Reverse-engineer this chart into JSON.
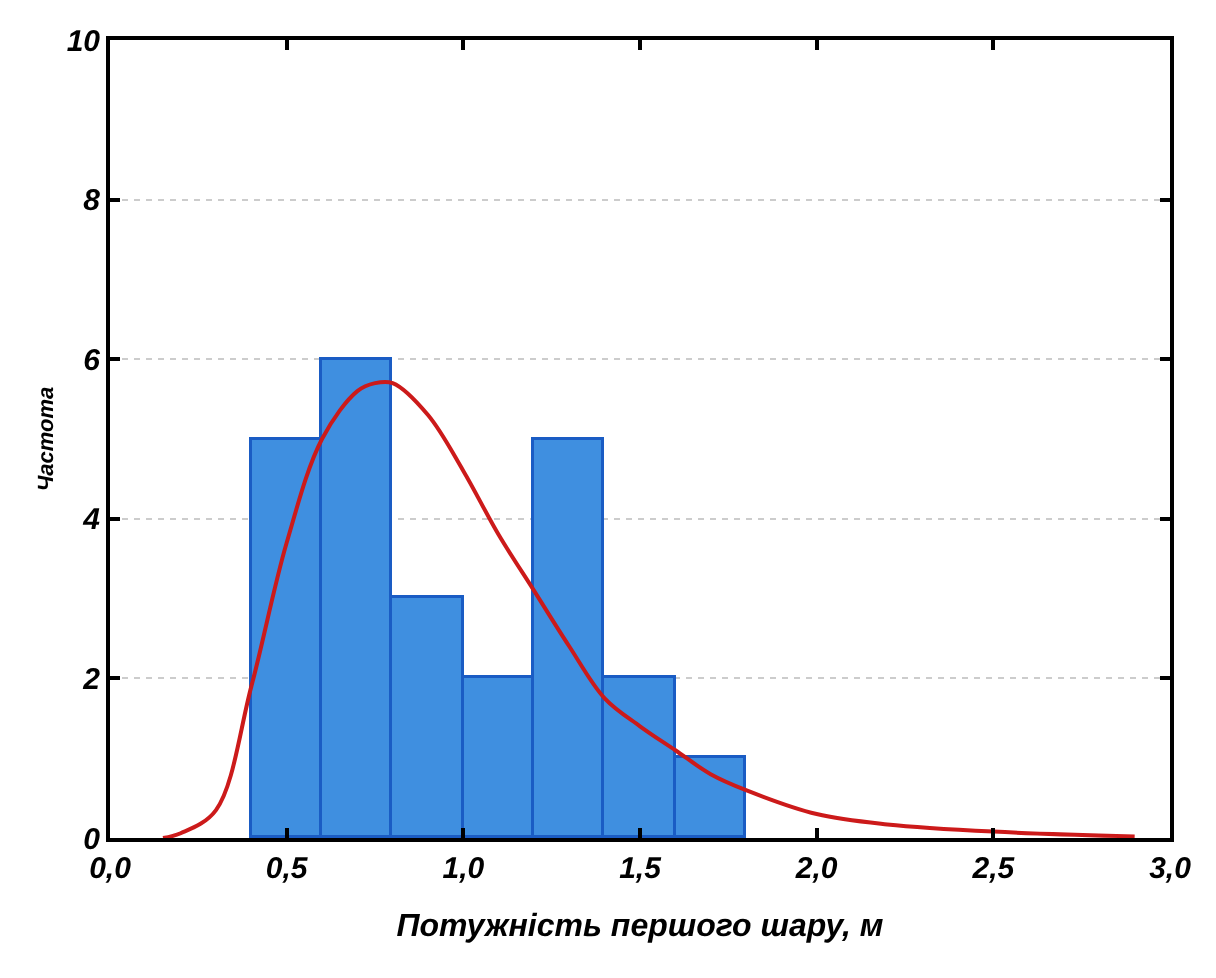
{
  "chart_data": {
    "type": "histogram",
    "xlabel": "Потужність першого шару, м",
    "ylabel": "Частота",
    "bins": [
      0.4,
      0.6,
      0.8,
      1.0,
      1.2,
      1.4,
      1.6,
      1.8
    ],
    "values": [
      5,
      6,
      3,
      2,
      5,
      2,
      1
    ],
    "color": "#3f8fe0",
    "series": [
      {
        "type": "line",
        "color": "#cc1a1a",
        "x": [
          0.15,
          0.2,
          0.3,
          0.4,
          0.5,
          0.6,
          0.7,
          0.75,
          0.8,
          0.9,
          1.0,
          1.1,
          1.2,
          1.3,
          1.4,
          1.5,
          1.6,
          1.7,
          1.8,
          2.0,
          2.2,
          2.5,
          2.9
        ],
        "values": [
          0,
          0.06,
          0.35,
          1.9,
          3.7,
          5.0,
          5.6,
          5.7,
          5.7,
          5.3,
          4.6,
          3.8,
          3.1,
          2.4,
          1.75,
          1.4,
          1.1,
          0.8,
          0.6,
          0.3,
          0.17,
          0.08,
          0.02
        ]
      }
    ],
    "xlim": [
      0,
      3.0
    ],
    "xticks": [
      {
        "value": 0,
        "label": "0,0"
      },
      {
        "value": 0.5,
        "label": "0,5"
      },
      {
        "value": 1.0,
        "label": "1,0"
      },
      {
        "value": 1.5,
        "label": "1,5"
      },
      {
        "value": 2.0,
        "label": "2,0"
      },
      {
        "value": 2.5,
        "label": "2,5"
      },
      {
        "value": 3.0,
        "label": "3,0"
      }
    ],
    "ylim": [
      0,
      10
    ],
    "yticks": [
      0,
      2,
      4,
      6,
      8,
      10
    ],
    "grid": "y"
  }
}
